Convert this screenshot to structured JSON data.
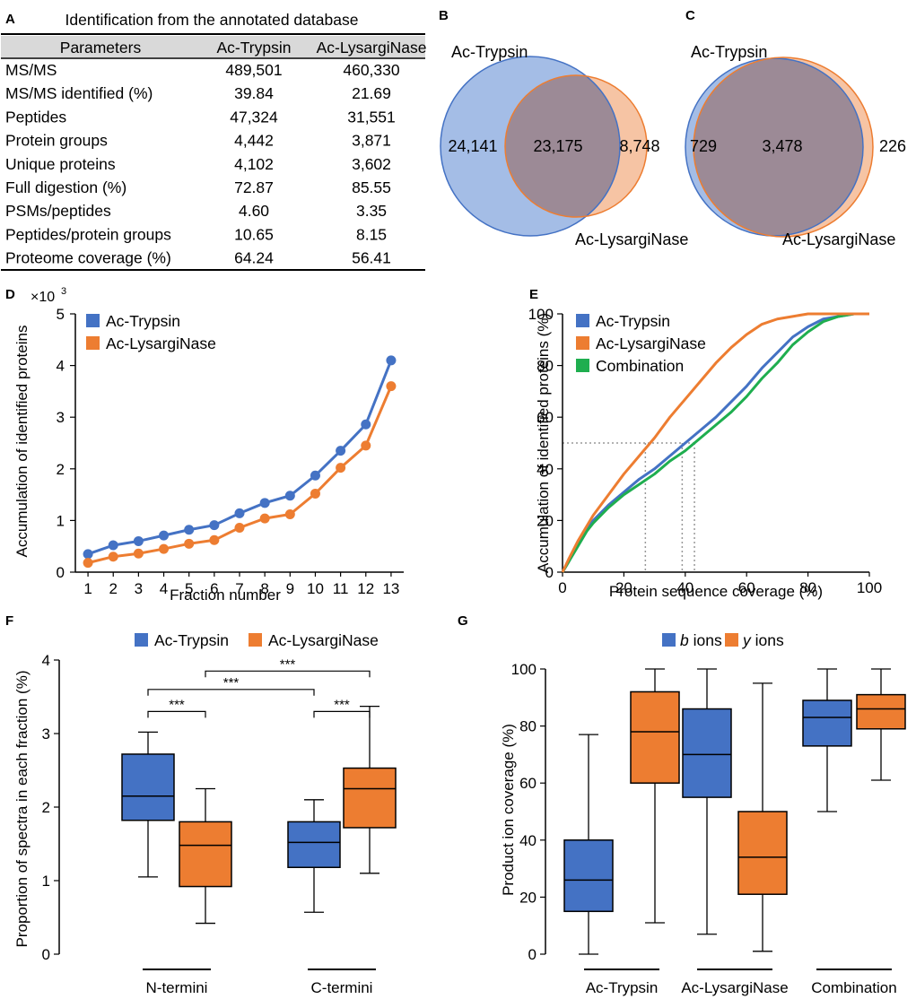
{
  "colors": {
    "blue": "#4472c4",
    "orange": "#ed7d31",
    "green": "#1fae4f",
    "venn_blue": "#a4bde6",
    "venn_orange": "#f6c4a4",
    "venn_overlap": "#9c8a96",
    "ref": "#999999"
  },
  "panels": {
    "A": "A",
    "B": "B",
    "C": "C",
    "D": "D",
    "E": "E",
    "F": "F",
    "G": "G"
  },
  "chart_data": [
    {
      "type": "table",
      "panel": "A",
      "title": "Identification from the annotated database",
      "columns": [
        "Parameters",
        "Ac-Trypsin",
        "Ac-LysargiNase"
      ],
      "rows": [
        [
          "MS/MS",
          "489,501",
          "460,330"
        ],
        [
          "MS/MS identified (%)",
          "39.84",
          "21.69"
        ],
        [
          "Peptides",
          "47,324",
          "31,551"
        ],
        [
          "Protein groups",
          "4,442",
          "3,871"
        ],
        [
          "Unique proteins",
          "4,102",
          "3,602"
        ],
        [
          "Full digestion (%)",
          "72.87",
          "85.55"
        ],
        [
          "PSMs/peptides",
          "4.60",
          "3.35"
        ],
        [
          "Peptides/protein groups",
          "10.65",
          "8.15"
        ],
        [
          "Proteome coverage (%)",
          "64.24",
          "56.41"
        ]
      ]
    },
    {
      "type": "venn",
      "panel": "B",
      "set_a": "Ac-Trypsin",
      "set_b": "Ac-LysargiNase",
      "only_a": "24,141",
      "both": "23,175",
      "only_b": "8,748"
    },
    {
      "type": "venn",
      "panel": "C",
      "set_a": "Ac-Trypsin",
      "set_b": "Ac-LysargiNase",
      "only_a": "729",
      "both": "3,478",
      "only_b": "226"
    },
    {
      "type": "line",
      "panel": "D",
      "xlabel": "Fraction number",
      "ylabel": "Accumulation of identified proteins",
      "y_multiplier": "×10",
      "y_multiplier_exp": "3",
      "x": [
        1,
        2,
        3,
        4,
        5,
        6,
        7,
        8,
        9,
        10,
        11,
        12,
        13
      ],
      "xlim": [
        0.5,
        13.5
      ],
      "ylim": [
        0,
        5
      ],
      "yticks": [
        0,
        1,
        2,
        3,
        4,
        5
      ],
      "legend_position": "top-left",
      "series": [
        {
          "name": "Ac-Trypsin",
          "values": [
            0.35,
            0.52,
            0.6,
            0.71,
            0.82,
            0.91,
            1.14,
            1.34,
            1.48,
            1.87,
            2.35,
            2.86,
            4.1
          ]
        },
        {
          "name": "Ac-LysargiNase",
          "values": [
            0.18,
            0.3,
            0.36,
            0.45,
            0.55,
            0.62,
            0.86,
            1.04,
            1.12,
            1.52,
            2.02,
            2.45,
            3.6
          ]
        }
      ]
    },
    {
      "type": "line",
      "panel": "E",
      "xlabel": "Protein sequence coverage (%)",
      "ylabel": "Accumulation of identified proteins (%)",
      "xlim": [
        0,
        100
      ],
      "ylim": [
        0,
        100
      ],
      "xticks": [
        0,
        20,
        40,
        60,
        80,
        100
      ],
      "yticks": [
        0,
        20,
        40,
        60,
        80,
        100
      ],
      "legend_position": "top-left",
      "x": [
        0,
        2,
        5,
        8,
        10,
        15,
        20,
        25,
        30,
        35,
        40,
        45,
        50,
        55,
        60,
        65,
        70,
        75,
        80,
        85,
        90,
        95,
        100
      ],
      "series": [
        {
          "name": "Ac-Trypsin",
          "values": [
            0,
            4,
            11,
            17,
            20,
            26,
            31,
            36,
            40,
            45,
            50,
            55,
            60,
            66,
            72,
            79,
            85,
            91,
            95,
            98,
            99,
            100,
            100
          ]
        },
        {
          "name": "Ac-LysargiNase",
          "values": [
            0,
            5,
            12,
            18,
            22,
            30,
            38,
            45,
            52,
            60,
            67,
            74,
            81,
            87,
            92,
            96,
            98,
            99,
            100,
            100,
            100,
            100,
            100
          ]
        },
        {
          "name": "Combination",
          "values": [
            0,
            4,
            10,
            16,
            19,
            25,
            30,
            34,
            38,
            43,
            47,
            52,
            57,
            62,
            68,
            75,
            81,
            88,
            93,
            97,
            99,
            100,
            100
          ]
        }
      ],
      "reference_lines": {
        "y": 50,
        "x": [
          27,
          39,
          43
        ]
      }
    },
    {
      "type": "box",
      "panel": "F",
      "ylabel": "Proportion of spectra in each fraction (%)",
      "ylim": [
        0,
        4
      ],
      "yticks": [
        0,
        1,
        2,
        3,
        4
      ],
      "categories": [
        "N-termini",
        "C-termini"
      ],
      "legend": [
        "Ac-Trypsin",
        "Ac-LysargiNase"
      ],
      "boxes": [
        {
          "group": "N-termini",
          "series": "Ac-Trypsin",
          "min": 1.05,
          "q1": 1.82,
          "median": 2.15,
          "q3": 2.72,
          "max": 3.02
        },
        {
          "group": "N-termini",
          "series": "Ac-LysargiNase",
          "min": 0.42,
          "q1": 0.92,
          "median": 1.48,
          "q3": 1.8,
          "max": 2.25
        },
        {
          "group": "C-termini",
          "series": "Ac-Trypsin",
          "min": 0.57,
          "q1": 1.18,
          "median": 1.52,
          "q3": 1.8,
          "max": 2.1
        },
        {
          "group": "C-termini",
          "series": "Ac-LysargiNase",
          "min": 1.1,
          "q1": 1.72,
          "median": 2.25,
          "q3": 2.53,
          "max": 3.37
        }
      ],
      "significance": [
        {
          "label": "***",
          "from": 0,
          "to": 1,
          "level": 3.3
        },
        {
          "label": "***",
          "from": 2,
          "to": 3,
          "level": 3.3
        },
        {
          "label": "***",
          "from": 0,
          "to": 2,
          "level": 3.6
        },
        {
          "label": "***",
          "from": 1,
          "to": 3,
          "level": 3.85
        }
      ]
    },
    {
      "type": "box",
      "panel": "G",
      "ylabel": "Product ion coverage (%)",
      "ylim": [
        0,
        100
      ],
      "yticks": [
        0,
        20,
        40,
        60,
        80,
        100
      ],
      "categories": [
        "Ac-Trypsin",
        "Ac-LysargiNase",
        "Combination"
      ],
      "legend_italic": [
        "b",
        "y"
      ],
      "legend_suffix": " ions",
      "boxes": [
        {
          "group": "Ac-Trypsin",
          "series": "b",
          "min": 0,
          "q1": 15,
          "median": 26,
          "q3": 40,
          "max": 77
        },
        {
          "group": "Ac-Trypsin",
          "series": "y",
          "min": 11,
          "q1": 60,
          "median": 78,
          "q3": 92,
          "max": 100
        },
        {
          "group": "Ac-LysargiNase",
          "series": "b",
          "min": 7,
          "q1": 55,
          "median": 70,
          "q3": 86,
          "max": 100
        },
        {
          "group": "Ac-LysargiNase",
          "series": "y",
          "min": 1,
          "q1": 21,
          "median": 34,
          "q3": 50,
          "max": 95
        },
        {
          "group": "Combination",
          "series": "b",
          "min": 50,
          "q1": 73,
          "median": 83,
          "q3": 89,
          "max": 100
        },
        {
          "group": "Combination",
          "series": "y",
          "min": 61,
          "q1": 79,
          "median": 86,
          "q3": 91,
          "max": 100
        }
      ]
    }
  ]
}
